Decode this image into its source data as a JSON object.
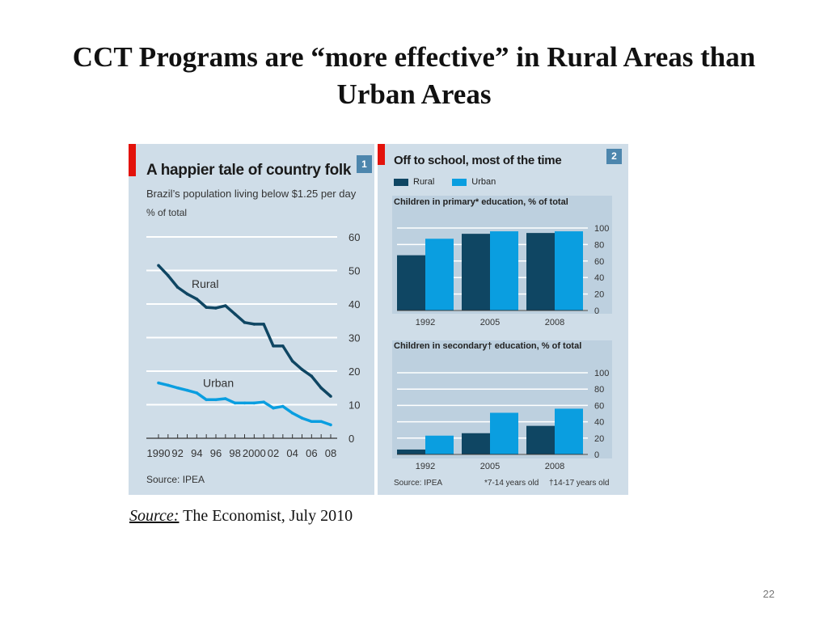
{
  "slide": {
    "title": "CCT Programs are “more effective” in Rural Areas than Urban Areas",
    "credit_label": "Source:",
    "credit_text": " The Economist, July 2010",
    "page_number": "22"
  },
  "colors": {
    "rural": "#0f4663",
    "urban": "#0a9ee0",
    "panel_bg": "#cfdde8",
    "accent": "#e3120b",
    "box": "#4d86ad"
  },
  "chart_data": [
    {
      "type": "line",
      "number": "1",
      "title": "A happier tale of country folk",
      "subtitle": "Brazil’s population living below $1.25 per day",
      "unit": "% of total",
      "source": "Source: IPEA",
      "x_tick_labels": [
        "1990",
        "92",
        "94",
        "96",
        "98",
        "2000",
        "02",
        "04",
        "06",
        "08"
      ],
      "y_ticks": [
        "0",
        "10",
        "20",
        "30",
        "40",
        "50",
        "60"
      ],
      "ylim": [
        0,
        60
      ],
      "grid": true,
      "series": [
        {
          "name": "Rural",
          "x": [
            1990,
            1991,
            1992,
            1993,
            1994,
            1995,
            1996,
            1997,
            1998,
            1999,
            2000,
            2001,
            2002,
            2003,
            2004,
            2005,
            2006,
            2007,
            2008
          ],
          "values": [
            51.5,
            48.5,
            45,
            43,
            41.5,
            39,
            38.8,
            39.5,
            37,
            34.5,
            34,
            34,
            27.5,
            27.5,
            23,
            20.5,
            18.5,
            15,
            12.5
          ]
        },
        {
          "name": "Urban",
          "x": [
            1990,
            1991,
            1992,
            1993,
            1994,
            1995,
            1996,
            1997,
            1998,
            1999,
            2000,
            2001,
            2002,
            2003,
            2004,
            2005,
            2006,
            2007,
            2008
          ],
          "values": [
            16.5,
            15.8,
            15,
            14.3,
            13.5,
            11.5,
            11.5,
            11.8,
            10.5,
            10.5,
            10.5,
            10.8,
            9,
            9.5,
            7.5,
            6,
            5,
            5,
            4
          ]
        }
      ]
    },
    {
      "type": "bar",
      "number": "2",
      "title": "Off to school, most of the time",
      "source": "Source: IPEA",
      "footnotes": [
        "*7-14 years old",
        "†14-17 years old"
      ],
      "legend": [
        "Rural",
        "Urban"
      ],
      "panels": [
        {
          "title": "Children in primary* education, % of total",
          "categories": [
            "1992",
            "2005",
            "2008"
          ],
          "series": [
            {
              "name": "Rural",
              "values": [
                67,
                93,
                94
              ]
            },
            {
              "name": "Urban",
              "values": [
                87,
                96,
                96
              ]
            }
          ],
          "ylim": [
            0,
            100
          ],
          "y_ticks": [
            "0",
            "20",
            "40",
            "60",
            "80",
            "100"
          ]
        },
        {
          "title": "Children in secondary† education, % of total",
          "categories": [
            "1992",
            "2005",
            "2008"
          ],
          "series": [
            {
              "name": "Rural",
              "values": [
                6,
                26,
                35
              ]
            },
            {
              "name": "Urban",
              "values": [
                23,
                51,
                56
              ]
            }
          ],
          "ylim": [
            0,
            100
          ],
          "y_ticks": [
            "0",
            "20",
            "40",
            "60",
            "80",
            "100"
          ]
        }
      ]
    }
  ]
}
